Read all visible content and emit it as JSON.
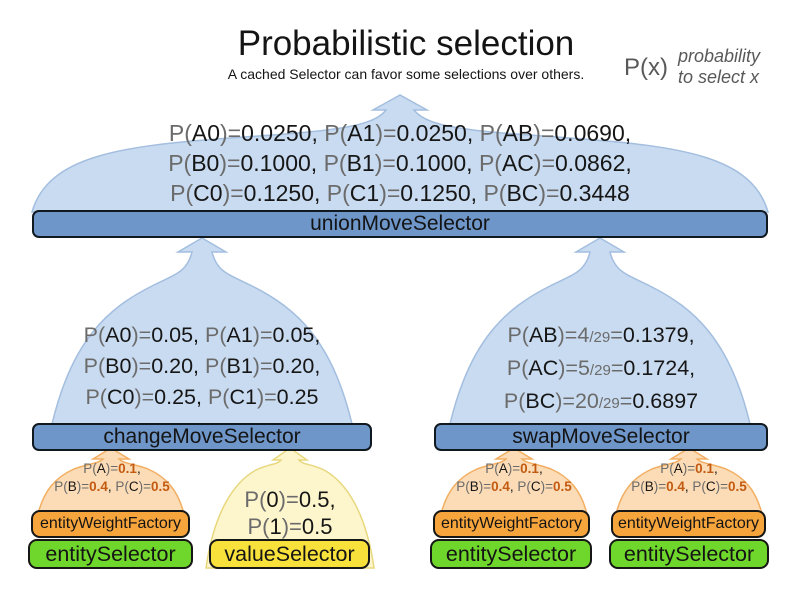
{
  "title": "Probabilistic selection",
  "subtitle": "A cached Selector can favor some selections over others.",
  "legend": {
    "symbol": "P(x)",
    "line1": "probability",
    "line2": "to select x"
  },
  "colors": {
    "funnel_blue": "#c9dbf0",
    "funnel_blue_stroke": "#a3bedf",
    "bar_blue": "#6e96c9",
    "funnel_orange": "#fbdcb6",
    "funnel_orange_stroke": "#f2ae62",
    "bar_orange": "#f6a43c",
    "bar_green": "#6fd62b",
    "funnel_yellow": "#fdf6cd",
    "funnel_yellow_stroke": "#e7d77d",
    "bar_yellow": "#f9e13c",
    "probability_value_orange": "#c35a11",
    "text_gray": "#6b6b6b"
  },
  "selectors": {
    "union": {
      "label": "unionMoveSelector"
    },
    "change": {
      "label": "changeMoveSelector"
    },
    "swap": {
      "label": "swapMoveSelector"
    },
    "entity_weight_1": {
      "label": "entityWeightFactory"
    },
    "entity_weight_2": {
      "label": "entityWeightFactory"
    },
    "entity_weight_3": {
      "label": "entityWeightFactory"
    },
    "entity_1": {
      "label": "entitySelector"
    },
    "entity_2": {
      "label": "entitySelector"
    },
    "entity_3": {
      "label": "entitySelector"
    },
    "value_1": {
      "label": "valueSelector"
    }
  },
  "probabilities": {
    "union": [
      [
        {
          "s": "g",
          "t": "P("
        },
        {
          "s": "k",
          "t": "A0"
        },
        {
          "s": "g",
          "t": ")="
        },
        {
          "s": "k",
          "t": "0.0250, "
        },
        {
          "s": "g",
          "t": "P("
        },
        {
          "s": "k",
          "t": "A1"
        },
        {
          "s": "g",
          "t": ")="
        },
        {
          "s": "k",
          "t": "0.0250, "
        },
        {
          "s": "g",
          "t": "P("
        },
        {
          "s": "k",
          "t": "AB"
        },
        {
          "s": "g",
          "t": ")="
        },
        {
          "s": "k",
          "t": "0.0690,"
        }
      ],
      [
        {
          "s": "g",
          "t": "P("
        },
        {
          "s": "k",
          "t": "B0"
        },
        {
          "s": "g",
          "t": ")="
        },
        {
          "s": "k",
          "t": "0.1000, "
        },
        {
          "s": "g",
          "t": "P("
        },
        {
          "s": "k",
          "t": "B1"
        },
        {
          "s": "g",
          "t": ")="
        },
        {
          "s": "k",
          "t": "0.1000, "
        },
        {
          "s": "g",
          "t": "P("
        },
        {
          "s": "k",
          "t": "AC"
        },
        {
          "s": "g",
          "t": ")="
        },
        {
          "s": "k",
          "t": "0.0862,"
        }
      ],
      [
        {
          "s": "g",
          "t": "P("
        },
        {
          "s": "k",
          "t": "C0"
        },
        {
          "s": "g",
          "t": ")="
        },
        {
          "s": "k",
          "t": "0.1250, "
        },
        {
          "s": "g",
          "t": "P("
        },
        {
          "s": "k",
          "t": "C1"
        },
        {
          "s": "g",
          "t": ")="
        },
        {
          "s": "k",
          "t": "0.1250, "
        },
        {
          "s": "g",
          "t": "P("
        },
        {
          "s": "k",
          "t": "BC"
        },
        {
          "s": "g",
          "t": ")="
        },
        {
          "s": "k",
          "t": "0.3448"
        }
      ]
    ],
    "change": [
      [
        {
          "s": "g",
          "t": "P("
        },
        {
          "s": "k",
          "t": "A0"
        },
        {
          "s": "g",
          "t": ")="
        },
        {
          "s": "k",
          "t": "0.05, "
        },
        {
          "s": "g",
          "t": "P("
        },
        {
          "s": "k",
          "t": "A1"
        },
        {
          "s": "g",
          "t": ")="
        },
        {
          "s": "k",
          "t": "0.05,"
        }
      ],
      [
        {
          "s": "g",
          "t": "P("
        },
        {
          "s": "k",
          "t": "B0"
        },
        {
          "s": "g",
          "t": ")="
        },
        {
          "s": "k",
          "t": "0.20, "
        },
        {
          "s": "g",
          "t": "P("
        },
        {
          "s": "k",
          "t": "B1"
        },
        {
          "s": "g",
          "t": ")="
        },
        {
          "s": "k",
          "t": "0.20,"
        }
      ],
      [
        {
          "s": "g",
          "t": "P("
        },
        {
          "s": "k",
          "t": "C0"
        },
        {
          "s": "g",
          "t": ")="
        },
        {
          "s": "k",
          "t": "0.25, "
        },
        {
          "s": "g",
          "t": "P("
        },
        {
          "s": "k",
          "t": "C1"
        },
        {
          "s": "g",
          "t": ")="
        },
        {
          "s": "k",
          "t": "0.25"
        }
      ]
    ],
    "swap": [
      [
        {
          "s": "g",
          "t": "P("
        },
        {
          "s": "k",
          "t": "AB"
        },
        {
          "s": "g",
          "t": ")="
        },
        {
          "s": "g",
          "t": "4"
        },
        {
          "s": "f",
          "t": "/29"
        },
        {
          "s": "g",
          "t": "="
        },
        {
          "s": "k",
          "t": "0.1379,"
        }
      ],
      [
        {
          "s": "g",
          "t": "P("
        },
        {
          "s": "k",
          "t": "AC"
        },
        {
          "s": "g",
          "t": ")="
        },
        {
          "s": "g",
          "t": "5"
        },
        {
          "s": "f",
          "t": "/29"
        },
        {
          "s": "g",
          "t": "="
        },
        {
          "s": "k",
          "t": "0.1724,"
        }
      ],
      [
        {
          "s": "g",
          "t": "P("
        },
        {
          "s": "k",
          "t": "BC"
        },
        {
          "s": "g",
          "t": ")="
        },
        {
          "s": "g",
          "t": "20"
        },
        {
          "s": "f",
          "t": "/29"
        },
        {
          "s": "g",
          "t": "="
        },
        {
          "s": "k",
          "t": "0.6897"
        }
      ]
    ],
    "entity_weight": [
      [
        {
          "s": "g",
          "t": "P("
        },
        {
          "s": "k",
          "t": "A"
        },
        {
          "s": "g",
          "t": ")="
        },
        {
          "s": "o",
          "t": "0.1"
        },
        {
          "s": "k",
          "t": ","
        }
      ],
      [
        {
          "s": "g",
          "t": "P("
        },
        {
          "s": "k",
          "t": "B"
        },
        {
          "s": "g",
          "t": ")="
        },
        {
          "s": "o",
          "t": "0.4"
        },
        {
          "s": "k",
          "t": ", "
        },
        {
          "s": "g",
          "t": "P("
        },
        {
          "s": "k",
          "t": "C"
        },
        {
          "s": "g",
          "t": ")="
        },
        {
          "s": "o",
          "t": "0.5"
        }
      ]
    ],
    "value": [
      [
        {
          "s": "g",
          "t": "P("
        },
        {
          "s": "k",
          "t": "0"
        },
        {
          "s": "g",
          "t": ")="
        },
        {
          "s": "k",
          "t": "0.5,"
        }
      ],
      [
        {
          "s": "g",
          "t": "P("
        },
        {
          "s": "k",
          "t": "1"
        },
        {
          "s": "g",
          "t": ")="
        },
        {
          "s": "k",
          "t": "0.5"
        }
      ]
    ]
  }
}
